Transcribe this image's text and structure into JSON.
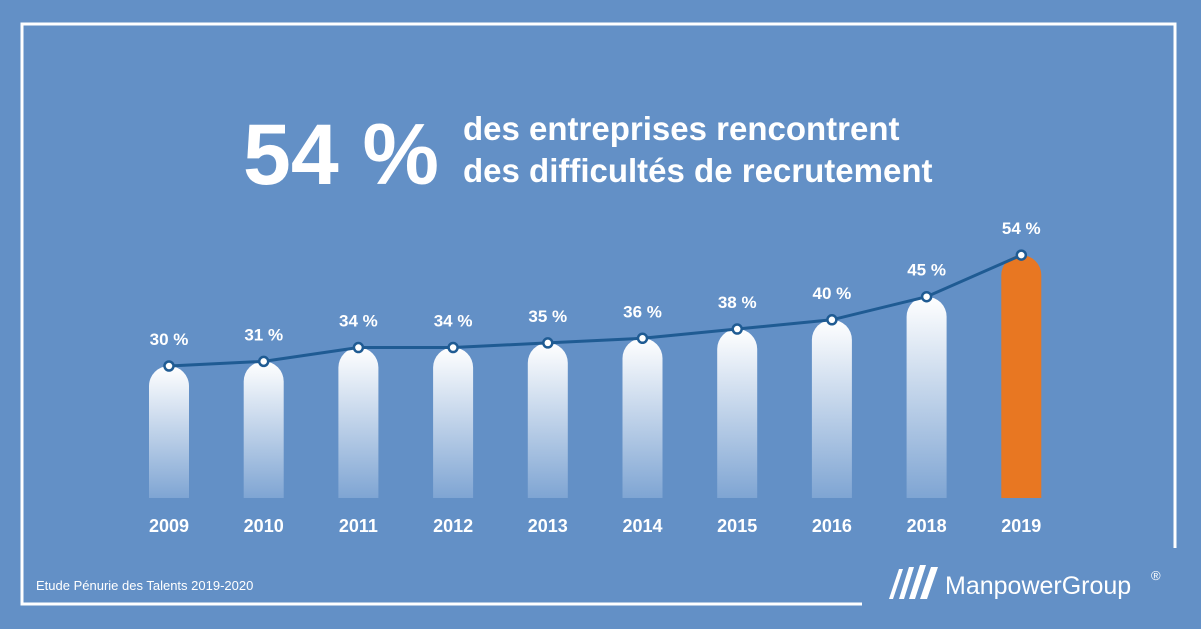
{
  "headline": {
    "big": "54 %",
    "line1": "des entreprises rencontrent",
    "line2": "des difficultés de recrutement"
  },
  "footer": {
    "source": "Etude Pénurie des Talents 2019-2020",
    "brand": "ManpowerGroup",
    "brand_mark": "®"
  },
  "colors": {
    "background": "#6390c6",
    "bar_top": "#ffffff",
    "bar_bottom": "#7fa5d3",
    "highlight": "#e87722",
    "line": "#1f5b93"
  },
  "chart_data": {
    "type": "bar",
    "categories": [
      "2009",
      "2010",
      "2011",
      "2012",
      "2013",
      "2014",
      "2015",
      "2016",
      "2018",
      "2019"
    ],
    "values": [
      30,
      31,
      34,
      34,
      35,
      36,
      38,
      40,
      45,
      54
    ],
    "labels": [
      "30 %",
      "31 %",
      "34 %",
      "34 %",
      "35 %",
      "36 %",
      "38 %",
      "40 %",
      "45 %",
      "54 %"
    ],
    "highlight_index": 9,
    "overlay": "line",
    "grid": false,
    "title": "",
    "xlabel": "",
    "ylabel": ""
  }
}
